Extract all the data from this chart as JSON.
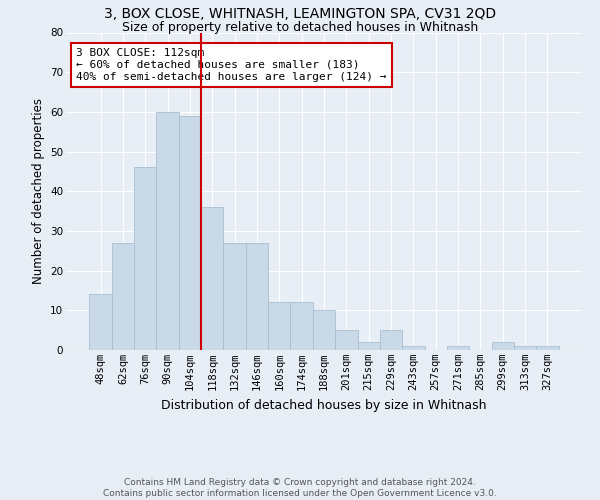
{
  "title": "3, BOX CLOSE, WHITNASH, LEAMINGTON SPA, CV31 2QD",
  "subtitle": "Size of property relative to detached houses in Whitnash",
  "xlabel": "Distribution of detached houses by size in Whitnash",
  "ylabel": "Number of detached properties",
  "bar_values": [
    14,
    27,
    46,
    60,
    59,
    36,
    27,
    27,
    12,
    12,
    10,
    5,
    2,
    5,
    1,
    0,
    1,
    0,
    2,
    1,
    1
  ],
  "bin_labels": [
    "48sqm",
    "62sqm",
    "76sqm",
    "90sqm",
    "104sqm",
    "118sqm",
    "132sqm",
    "146sqm",
    "160sqm",
    "174sqm",
    "188sqm",
    "201sqm",
    "215sqm",
    "229sqm",
    "243sqm",
    "257sqm",
    "271sqm",
    "285sqm",
    "299sqm",
    "313sqm",
    "327sqm"
  ],
  "bar_color": "#c9d9e8",
  "bar_edge_color": "#a8bfd0",
  "vline_color": "#cc0000",
  "annotation_box_color": "#cc0000",
  "annotation_line1": "3 BOX CLOSE: 112sqm",
  "annotation_line2": "← 60% of detached houses are smaller (183)",
  "annotation_line3": "40% of semi-detached houses are larger (124) →",
  "ylim": [
    0,
    80
  ],
  "yticks": [
    0,
    10,
    20,
    30,
    40,
    50,
    60,
    70,
    80
  ],
  "background_color": "#e8eef5",
  "plot_background": "#e8eef5",
  "footer": "Contains HM Land Registry data © Crown copyright and database right 2024.\nContains public sector information licensed under the Open Government Licence v3.0.",
  "title_fontsize": 10,
  "subtitle_fontsize": 9,
  "xlabel_fontsize": 9,
  "ylabel_fontsize": 8.5,
  "tick_fontsize": 7.5,
  "annotation_fontsize": 8,
  "footer_fontsize": 6.5
}
